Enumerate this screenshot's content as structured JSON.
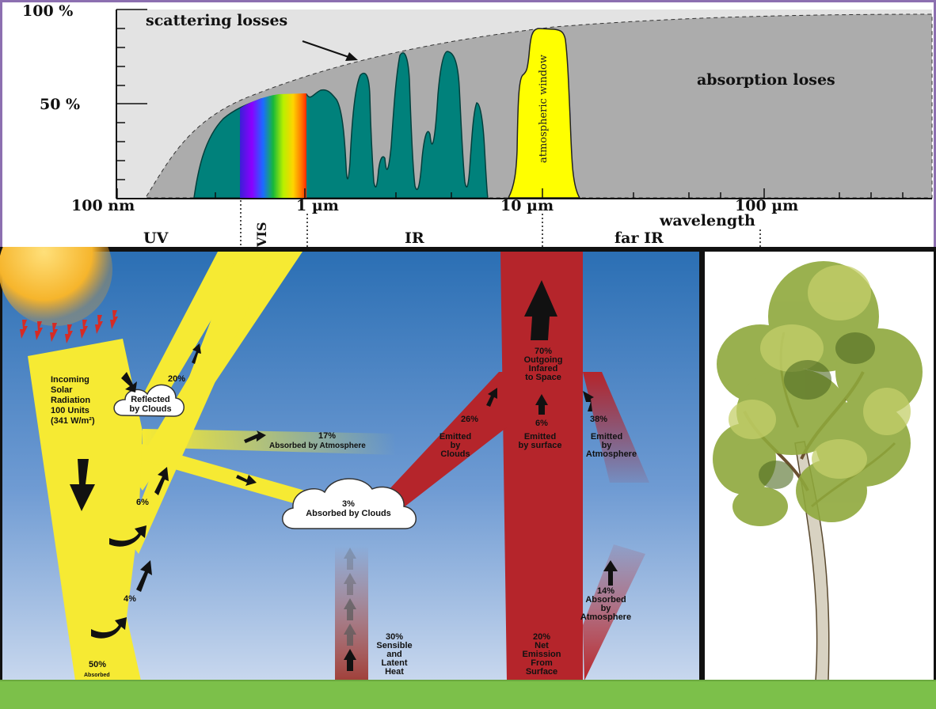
{
  "spectrum": {
    "y_axis": {
      "label_100": "100 %",
      "label_50": "50 %"
    },
    "x_axis": {
      "tick_100nm": "100 nm",
      "tick_1um": "1 µm",
      "tick_10um": "10 µm",
      "tick_100um": "100 µm",
      "title": "wavelength"
    },
    "annotations": {
      "scattering": "scattering losses",
      "absorption": "absorption loses",
      "window": "atmospheric window"
    },
    "bands": {
      "uv": "UV",
      "vis": "VIS",
      "ir": "IR",
      "far_ir": "far IR"
    }
  },
  "energy": {
    "incoming": {
      "line1": "Incoming",
      "line2": "Solar",
      "line3": "Radiation",
      "line4": "100 Units",
      "line5": "(341 W/m²)"
    },
    "reflected_clouds": {
      "line1": "Reflected",
      "line2": "by Clouds"
    },
    "pct_20": "20%",
    "absorbed_atm": {
      "pct": "17%",
      "text": "Absorbed by Atmosphere"
    },
    "pct_6_left": "6%",
    "pct_4": "4%",
    "absorbed_clouds": {
      "pct": "3%",
      "text": "Absorbed by Clouds"
    },
    "absorbed_ground": {
      "pct": "50%",
      "text": "Absorbed"
    },
    "sensible": {
      "pct": "30%",
      "line1": "Sensible",
      "line2": "and",
      "line3": "Latent",
      "line4": "Heat"
    },
    "emitted_clouds": {
      "pct": "26%",
      "line1": "Emitted",
      "line2": "by",
      "line3": "Clouds"
    },
    "emitted_surface": {
      "pct": "6%",
      "line1": "Emitted",
      "line2": "by surface"
    },
    "emitted_atm": {
      "pct": "38%",
      "line1": "Emitted",
      "line2": "by",
      "line3": "Atmosphere"
    },
    "outgoing": {
      "pct": "70%",
      "line1": "Outgoing",
      "line2": "Infared",
      "line3": "to Space"
    },
    "net_emission": {
      "pct": "20%",
      "line1": "Net",
      "line2": "Emission",
      "line3": "From",
      "line4": "Surface"
    },
    "absorbed_atm2": {
      "pct": "14%",
      "line1": "Absorbed",
      "line2": "by",
      "line3": "Atmosphere"
    }
  },
  "colors": {
    "teal": "#00817b",
    "yellow": "#f6ea33",
    "red": "#b5252b",
    "grass": "#7cc04a",
    "sky_top": "#2b6fb4",
    "frame": "#8c6fb0"
  }
}
